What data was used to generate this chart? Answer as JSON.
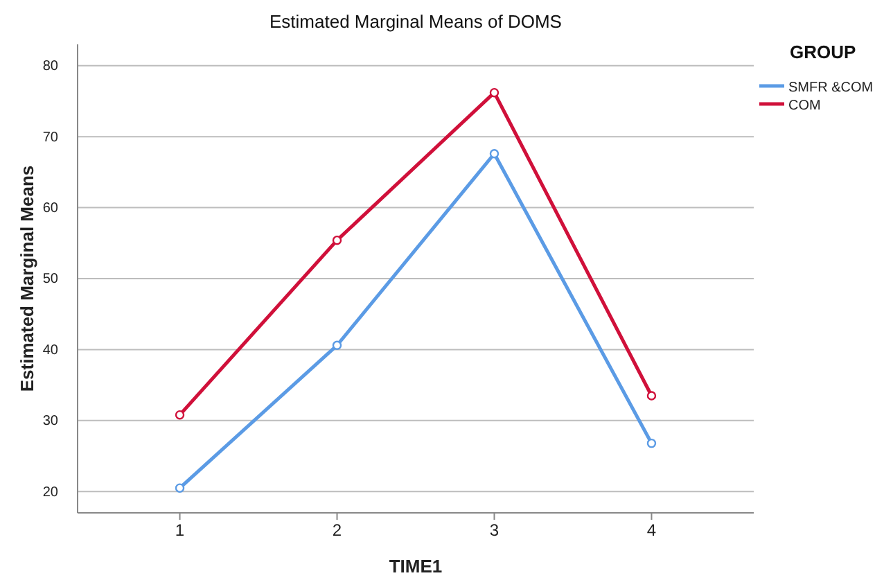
{
  "chart_data": {
    "type": "line",
    "title": "Estimated Marginal Means of DOMS",
    "xlabel": "TIME1",
    "ylabel": "Estimated Marginal Means",
    "legend_title": "GROUP",
    "categories": [
      "1",
      "2",
      "3",
      "4"
    ],
    "series": [
      {
        "name": "SMFR &COM",
        "color": "#5b9be5",
        "values": [
          20.5,
          40.6,
          67.6,
          26.8
        ]
      },
      {
        "name": "COM",
        "color": "#d0103a",
        "values": [
          30.8,
          55.4,
          76.2,
          33.5
        ]
      }
    ],
    "ylim": [
      17,
      83
    ],
    "yticks": [
      20,
      30,
      40,
      50,
      60,
      70,
      80
    ],
    "grid": "y",
    "legend": "top right",
    "marker": "circle",
    "line_style": "solid"
  }
}
